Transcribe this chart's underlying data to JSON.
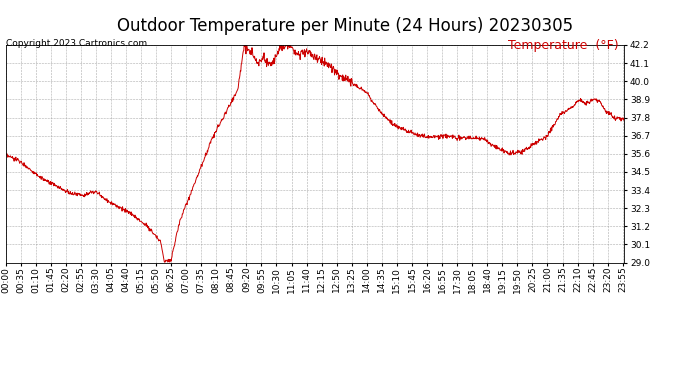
{
  "title": "Outdoor Temperature per Minute (24 Hours) 20230305",
  "copyright_text": "Copyright 2023 Cartronics.com",
  "legend_label": "Temperature  (°F)",
  "line_color": "#cc0000",
  "background_color": "#ffffff",
  "grid_color": "#999999",
  "ylim": [
    29.0,
    42.2
  ],
  "yticks": [
    29.0,
    30.1,
    31.2,
    32.3,
    33.4,
    34.5,
    35.6,
    36.7,
    37.8,
    38.9,
    40.0,
    41.1,
    42.2
  ],
  "title_fontsize": 12,
  "axis_fontsize": 6.5,
  "copyright_fontsize": 6.5,
  "legend_fontsize": 9,
  "tick_interval_min": 35
}
